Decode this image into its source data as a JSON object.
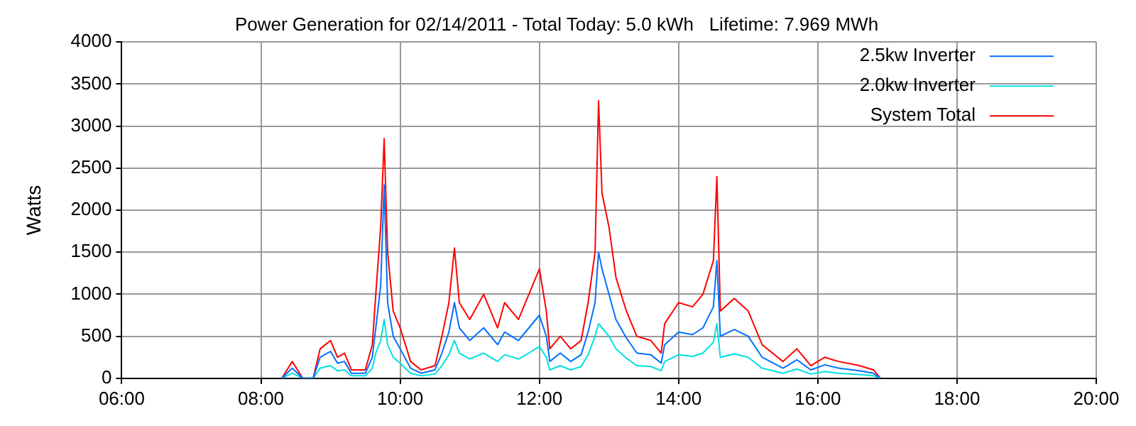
{
  "chart_data": {
    "type": "line",
    "title": "Power Generation for 02/14/2011 - Total Today: 5.0 kWh   Lifetime: 7.969 MWh",
    "ylabel": "Watts",
    "x": [
      8.3,
      8.45,
      8.6,
      8.75,
      8.85,
      9.0,
      9.1,
      9.2,
      9.3,
      9.5,
      9.6,
      9.65,
      9.72,
      9.77,
      9.82,
      9.9,
      10.0,
      10.15,
      10.3,
      10.5,
      10.6,
      10.7,
      10.78,
      10.85,
      11.0,
      11.2,
      11.4,
      11.5,
      11.7,
      11.85,
      12.0,
      12.1,
      12.15,
      12.3,
      12.45,
      12.6,
      12.7,
      12.8,
      12.85,
      12.9,
      13.0,
      13.1,
      13.25,
      13.4,
      13.6,
      13.75,
      13.8,
      14.0,
      14.2,
      14.35,
      14.5,
      14.55,
      14.6,
      14.8,
      15.0,
      15.2,
      15.5,
      15.7,
      15.9,
      16.1,
      16.3,
      16.6,
      16.8,
      16.9
    ],
    "series": [
      {
        "name": "2.5kw Inverter",
        "color": "#0070ff",
        "values": [
          0,
          120,
          0,
          0,
          250,
          320,
          180,
          200,
          60,
          60,
          250,
          600,
          1100,
          2300,
          900,
          500,
          350,
          120,
          60,
          100,
          300,
          550,
          900,
          600,
          450,
          600,
          400,
          550,
          450,
          600,
          750,
          500,
          200,
          300,
          200,
          280,
          550,
          900,
          1500,
          1300,
          1000,
          700,
          480,
          300,
          280,
          180,
          400,
          550,
          520,
          600,
          850,
          1400,
          500,
          580,
          500,
          250,
          120,
          220,
          100,
          160,
          120,
          90,
          60,
          0
        ]
      },
      {
        "name": "2.0kw Inverter",
        "color": "#00e0e0",
        "values": [
          0,
          60,
          0,
          0,
          120,
          150,
          90,
          100,
          30,
          30,
          120,
          300,
          450,
          700,
          400,
          250,
          180,
          60,
          30,
          50,
          150,
          280,
          450,
          300,
          230,
          300,
          200,
          280,
          230,
          300,
          380,
          250,
          100,
          150,
          100,
          140,
          280,
          500,
          650,
          600,
          500,
          350,
          240,
          150,
          140,
          90,
          200,
          280,
          260,
          300,
          430,
          650,
          250,
          290,
          250,
          120,
          60,
          110,
          50,
          80,
          60,
          45,
          30,
          0
        ]
      },
      {
        "name": "System Total",
        "color": "#ff0000",
        "values": [
          0,
          200,
          0,
          0,
          350,
          450,
          250,
          300,
          100,
          100,
          400,
          1000,
          1800,
          2850,
          1500,
          800,
          600,
          200,
          100,
          150,
          500,
          900,
          1550,
          900,
          700,
          1000,
          600,
          900,
          700,
          1000,
          1300,
          800,
          350,
          500,
          350,
          450,
          900,
          1500,
          3300,
          2200,
          1800,
          1200,
          800,
          500,
          450,
          300,
          650,
          900,
          850,
          1000,
          1400,
          2400,
          800,
          950,
          800,
          400,
          200,
          350,
          150,
          250,
          200,
          150,
          100,
          0
        ]
      }
    ],
    "xlim": [
      6,
      20
    ],
    "xticks": [
      {
        "value": 6,
        "label": "06:00"
      },
      {
        "value": 8,
        "label": "08:00"
      },
      {
        "value": 10,
        "label": "10:00"
      },
      {
        "value": 12,
        "label": "12:00"
      },
      {
        "value": 14,
        "label": "14:00"
      },
      {
        "value": 16,
        "label": "16:00"
      },
      {
        "value": 18,
        "label": "18:00"
      },
      {
        "value": 20,
        "label": "20:00"
      }
    ],
    "ylim": [
      0,
      4000
    ],
    "yticks": [
      0,
      500,
      1000,
      1500,
      2000,
      2500,
      3000,
      3500,
      4000
    ],
    "grid": true,
    "legend": "top right",
    "line_style": "solid"
  }
}
